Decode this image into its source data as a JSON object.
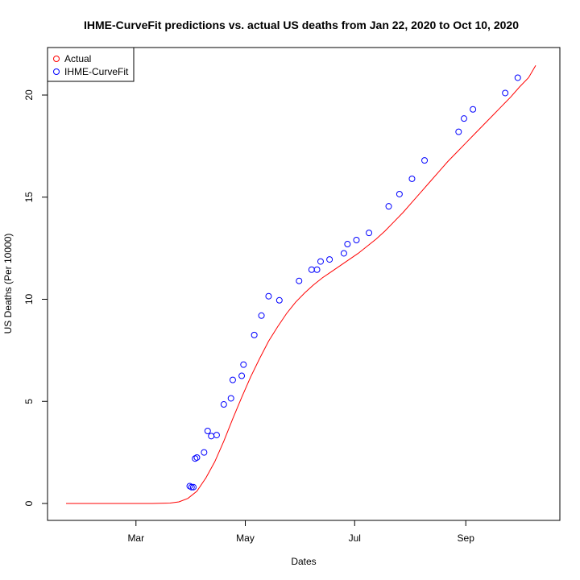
{
  "chart_data": {
    "type": "scatter",
    "title": "IHME-CurveFit predictions vs. actual US deaths from Jan 22, 2020 to Oct 10, 2020",
    "xlabel": "Dates",
    "ylabel": "US Deaths (Per 10000)",
    "xlim": [
      "2020-01-22",
      "2020-10-10"
    ],
    "ylim": [
      0,
      21.5
    ],
    "x_ticks": [
      {
        "date": "2020-03-01",
        "label": "Mar"
      },
      {
        "date": "2020-05-01",
        "label": "May"
      },
      {
        "date": "2020-07-01",
        "label": "Jul"
      },
      {
        "date": "2020-09-01",
        "label": "Sep"
      }
    ],
    "y_ticks": [
      0,
      5,
      10,
      15,
      20
    ],
    "grid": false,
    "legend": {
      "position": "top-left",
      "entries": [
        {
          "label": "Actual",
          "color": "#ff0000",
          "marker": "circle"
        },
        {
          "label": "IHME-CurveFit",
          "color": "#0000ff",
          "marker": "circle"
        }
      ]
    },
    "series": [
      {
        "name": "Actual",
        "style": "line",
        "color": "#ff0000",
        "points": [
          [
            "2020-01-22",
            0
          ],
          [
            "2020-02-15",
            0
          ],
          [
            "2020-03-10",
            0
          ],
          [
            "2020-03-20",
            0.02
          ],
          [
            "2020-03-25",
            0.08
          ],
          [
            "2020-03-30",
            0.25
          ],
          [
            "2020-04-04",
            0.6
          ],
          [
            "2020-04-09",
            1.25
          ],
          [
            "2020-04-14",
            2.05
          ],
          [
            "2020-04-19",
            3.05
          ],
          [
            "2020-04-24",
            4.15
          ],
          [
            "2020-04-29",
            5.2
          ],
          [
            "2020-05-04",
            6.2
          ],
          [
            "2020-05-09",
            7.1
          ],
          [
            "2020-05-14",
            7.95
          ],
          [
            "2020-05-19",
            8.65
          ],
          [
            "2020-05-24",
            9.3
          ],
          [
            "2020-05-29",
            9.85
          ],
          [
            "2020-06-03",
            10.3
          ],
          [
            "2020-06-08",
            10.7
          ],
          [
            "2020-06-13",
            11.05
          ],
          [
            "2020-06-18",
            11.35
          ],
          [
            "2020-06-23",
            11.65
          ],
          [
            "2020-06-28",
            11.95
          ],
          [
            "2020-07-03",
            12.25
          ],
          [
            "2020-07-08",
            12.6
          ],
          [
            "2020-07-13",
            12.95
          ],
          [
            "2020-07-18",
            13.35
          ],
          [
            "2020-07-23",
            13.8
          ],
          [
            "2020-07-28",
            14.25
          ],
          [
            "2020-08-02",
            14.75
          ],
          [
            "2020-08-07",
            15.25
          ],
          [
            "2020-08-12",
            15.75
          ],
          [
            "2020-08-17",
            16.25
          ],
          [
            "2020-08-22",
            16.75
          ],
          [
            "2020-08-27",
            17.2
          ],
          [
            "2020-09-01",
            17.65
          ],
          [
            "2020-09-06",
            18.1
          ],
          [
            "2020-09-11",
            18.55
          ],
          [
            "2020-09-16",
            19.0
          ],
          [
            "2020-09-21",
            19.45
          ],
          [
            "2020-09-26",
            19.9
          ],
          [
            "2020-10-01",
            20.4
          ],
          [
            "2020-10-06",
            20.85
          ],
          [
            "2020-10-10",
            21.45
          ]
        ]
      },
      {
        "name": "IHME-CurveFit",
        "style": "points",
        "color": "#0000ff",
        "points": [
          [
            "2020-03-31",
            0.85
          ],
          [
            "2020-04-01",
            0.8
          ],
          [
            "2020-04-02",
            0.8
          ],
          [
            "2020-04-03",
            2.2
          ],
          [
            "2020-04-04",
            2.25
          ],
          [
            "2020-04-08",
            2.5
          ],
          [
            "2020-04-10",
            3.55
          ],
          [
            "2020-04-12",
            3.3
          ],
          [
            "2020-04-15",
            3.35
          ],
          [
            "2020-04-19",
            4.85
          ],
          [
            "2020-04-23",
            5.15
          ],
          [
            "2020-04-24",
            6.05
          ],
          [
            "2020-04-29",
            6.25
          ],
          [
            "2020-04-30",
            6.8
          ],
          [
            "2020-05-06",
            8.25
          ],
          [
            "2020-05-10",
            9.2
          ],
          [
            "2020-05-14",
            10.15
          ],
          [
            "2020-05-20",
            9.95
          ],
          [
            "2020-05-31",
            10.9
          ],
          [
            "2020-06-07",
            11.45
          ],
          [
            "2020-06-10",
            11.45
          ],
          [
            "2020-06-12",
            11.85
          ],
          [
            "2020-06-17",
            11.95
          ],
          [
            "2020-06-25",
            12.25
          ],
          [
            "2020-06-27",
            12.7
          ],
          [
            "2020-07-02",
            12.9
          ],
          [
            "2020-07-09",
            13.25
          ],
          [
            "2020-07-20",
            14.55
          ],
          [
            "2020-07-26",
            15.15
          ],
          [
            "2020-08-02",
            15.9
          ],
          [
            "2020-08-09",
            16.8
          ],
          [
            "2020-08-28",
            18.2
          ],
          [
            "2020-08-31",
            18.85
          ],
          [
            "2020-09-05",
            19.3
          ],
          [
            "2020-09-23",
            20.1
          ],
          [
            "2020-09-30",
            20.85
          ]
        ]
      }
    ]
  }
}
